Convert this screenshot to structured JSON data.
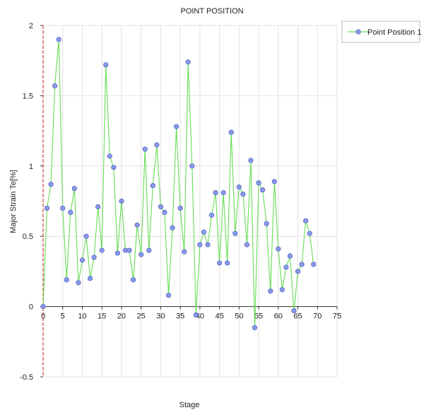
{
  "chart_data": {
    "type": "line",
    "title": "POINT POSITION",
    "xlabel": "Stage",
    "ylabel": "Major Strain Te[%]",
    "xlim": [
      0,
      75
    ],
    "ylim": [
      -0.5,
      2
    ],
    "x_ticks": [
      "0",
      "5",
      "10",
      "15",
      "20",
      "25",
      "30",
      "35",
      "40",
      "45",
      "50",
      "55",
      "60",
      "65",
      "70",
      "75"
    ],
    "y_ticks": [
      "-0.5",
      "0",
      "0.5",
      "1",
      "1.5",
      "2"
    ],
    "grid": true,
    "legend_position": "top-right",
    "series": [
      {
        "name": "Point Position 1",
        "line_color": "#66dd55",
        "marker_color": "#8899ee",
        "x": [
          0,
          1,
          2,
          3,
          4,
          5,
          6,
          7,
          8,
          9,
          10,
          11,
          12,
          13,
          14,
          15,
          16,
          17,
          18,
          19,
          20,
          21,
          22,
          23,
          24,
          25,
          26,
          27,
          28,
          29,
          30,
          31,
          32,
          33,
          34,
          35,
          36,
          37,
          38,
          39,
          40,
          41,
          42,
          43,
          44,
          45,
          46,
          47,
          48,
          49,
          50,
          51,
          52,
          53,
          54,
          55,
          56,
          57,
          58,
          59,
          60,
          61,
          62,
          63,
          64,
          65,
          66,
          67,
          68,
          69
        ],
        "values": [
          0.0,
          0.7,
          0.87,
          1.57,
          1.9,
          0.7,
          0.19,
          0.67,
          0.84,
          0.17,
          0.33,
          0.5,
          0.2,
          0.35,
          0.71,
          0.4,
          1.72,
          1.07,
          0.99,
          0.38,
          0.75,
          0.4,
          0.4,
          0.19,
          0.58,
          0.37,
          1.12,
          0.4,
          0.86,
          1.15,
          0.71,
          0.67,
          0.08,
          0.56,
          1.28,
          0.7,
          0.39,
          1.74,
          1.0,
          -0.06,
          0.44,
          0.53,
          0.44,
          0.65,
          0.81,
          0.31,
          0.81,
          0.31,
          1.24,
          0.52,
          0.85,
          0.8,
          0.44,
          1.04,
          -0.15,
          0.88,
          0.83,
          0.59,
          0.11,
          0.89,
          0.41,
          0.12,
          0.28,
          0.36,
          -0.03,
          0.25,
          0.3,
          0.61,
          0.52,
          0.3
        ]
      }
    ]
  }
}
